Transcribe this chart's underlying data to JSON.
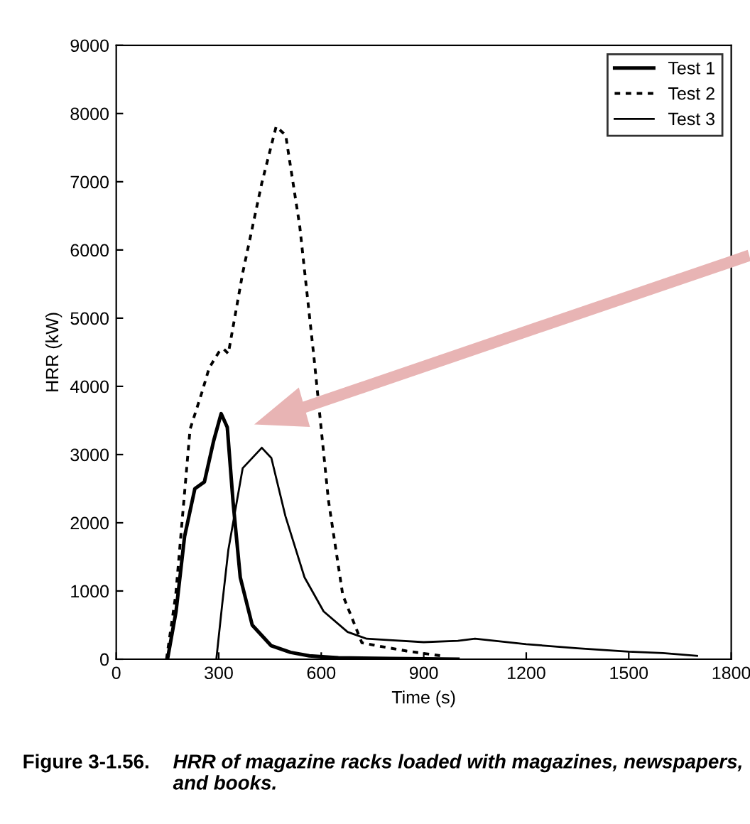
{
  "chart_data": {
    "type": "line",
    "xlabel": "Time (s)",
    "ylabel": "HRR (kW)",
    "xlim": [
      0,
      1800
    ],
    "xticks": [
      0,
      300,
      600,
      900,
      1200,
      1500,
      1800
    ],
    "ylim": [
      0,
      9000
    ],
    "yticks": [
      0,
      1000,
      2000,
      3000,
      4000,
      5000,
      6000,
      7000,
      8000,
      9000
    ],
    "grid": false,
    "legend": "top right",
    "marker": "none",
    "series": [
      {
        "name": "Test 1",
        "color": "#000000",
        "line_style": "solid",
        "x": [
          150,
          175,
          200,
          230,
          258,
          285,
          307,
          325,
          342,
          363,
          398,
          453,
          510,
          565,
          650,
          800,
          1000
        ],
        "values": [
          0,
          700,
          1800,
          2500,
          2600,
          3200,
          3600,
          3400,
          2300,
          1200,
          500,
          200,
          100,
          50,
          20,
          10,
          0
        ]
      },
      {
        "name": "Test 2",
        "color": "#000000",
        "line_style": "dashed",
        "x": [
          147,
          174,
          216,
          250,
          272,
          300,
          314,
          328,
          370,
          426,
          468,
          496,
          537,
          579,
          621,
          663,
          719,
          760,
          850,
          950
        ],
        "values": [
          0,
          940,
          3370,
          3900,
          4270,
          4500,
          4550,
          4480,
          5660,
          6980,
          7810,
          7680,
          6350,
          4410,
          2330,
          940,
          240,
          200,
          120,
          50
        ]
      },
      {
        "name": "Test 3",
        "color": "#000000",
        "line_style": "solid",
        "x": [
          293,
          310,
          328,
          370,
          426,
          454,
          495,
          551,
          607,
          677,
          733,
          800,
          900,
          1000,
          1050,
          1200,
          1350,
          1500,
          1600,
          1700
        ],
        "values": [
          0,
          800,
          1600,
          2800,
          3100,
          2950,
          2100,
          1200,
          700,
          400,
          300,
          280,
          250,
          270,
          300,
          220,
          160,
          110,
          90,
          50
        ]
      }
    ],
    "annotations": [
      "Figure 3-1.56.",
      "HRR of magazine racks loaded with magazines, newspapers, and books."
    ]
  }
}
